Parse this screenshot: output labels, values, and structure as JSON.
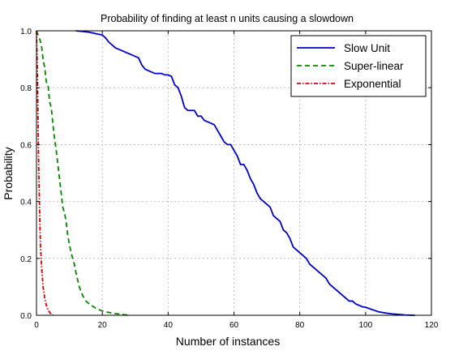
{
  "chart_data": {
    "type": "line",
    "title": "Probability of finding at least n units causing a slowdown",
    "xlabel": "Number of instances",
    "ylabel": "Probability",
    "xlim": [
      0,
      120
    ],
    "ylim": [
      0,
      1.0
    ],
    "xticks": [
      0,
      20,
      40,
      60,
      80,
      100,
      120
    ],
    "yticks": [
      0,
      0.2,
      0.4,
      0.6,
      0.8,
      1.0
    ],
    "xtick_labels": [
      "0",
      "20",
      "40",
      "60",
      "80",
      "100",
      "120"
    ],
    "ytick_labels": [
      "0.0",
      "0.2",
      "0.4",
      "0.6",
      "0.8",
      "1.0"
    ],
    "grid": true,
    "legend_position": "top-right",
    "series": [
      {
        "name": "Slow Unit",
        "color": "#0000cc",
        "line_style": "solid",
        "x": [
          12,
          16,
          20,
          21,
          22,
          23,
          24,
          25,
          26,
          27,
          28,
          29,
          30,
          31,
          32,
          33,
          34,
          35,
          36,
          37,
          38,
          39,
          40,
          41,
          42,
          43,
          44,
          45,
          46,
          47,
          48,
          49,
          50,
          51,
          52,
          53,
          54,
          55,
          56,
          57,
          58,
          59,
          60,
          61,
          62,
          63,
          64,
          65,
          66,
          67,
          68,
          69,
          70,
          71,
          72,
          73,
          74,
          75,
          76,
          77,
          78,
          79,
          80,
          81,
          82,
          83,
          84,
          85,
          86,
          87,
          88,
          89,
          90,
          91,
          92,
          93,
          94,
          95,
          96,
          97,
          98,
          99,
          100,
          102,
          104,
          106,
          108,
          110,
          112,
          115
        ],
        "y": [
          1.0,
          0.995,
          0.985,
          0.975,
          0.96,
          0.95,
          0.94,
          0.935,
          0.93,
          0.925,
          0.92,
          0.915,
          0.91,
          0.905,
          0.88,
          0.865,
          0.86,
          0.855,
          0.85,
          0.85,
          0.85,
          0.845,
          0.845,
          0.84,
          0.81,
          0.8,
          0.77,
          0.73,
          0.72,
          0.72,
          0.72,
          0.7,
          0.7,
          0.685,
          0.68,
          0.675,
          0.67,
          0.65,
          0.63,
          0.61,
          0.6,
          0.6,
          0.58,
          0.56,
          0.53,
          0.53,
          0.51,
          0.48,
          0.46,
          0.43,
          0.41,
          0.4,
          0.39,
          0.38,
          0.35,
          0.34,
          0.33,
          0.3,
          0.29,
          0.27,
          0.24,
          0.23,
          0.22,
          0.21,
          0.2,
          0.18,
          0.17,
          0.16,
          0.15,
          0.14,
          0.13,
          0.11,
          0.1,
          0.09,
          0.08,
          0.07,
          0.06,
          0.05,
          0.05,
          0.04,
          0.035,
          0.03,
          0.028,
          0.02,
          0.012,
          0.008,
          0.005,
          0.003,
          0.001,
          0.0
        ]
      },
      {
        "name": "Super-linear",
        "color": "#008800",
        "line_style": "dashed",
        "x": [
          0,
          1,
          1.5,
          2,
          2.5,
          3,
          3.5,
          4,
          4.5,
          5,
          5.5,
          6,
          6.5,
          7,
          7.5,
          8,
          8.5,
          9,
          9.5,
          10,
          10.5,
          11,
          11.5,
          12,
          13,
          14,
          15,
          16,
          18,
          20,
          22,
          24,
          26,
          28
        ],
        "y": [
          1.0,
          0.97,
          0.95,
          0.9,
          0.87,
          0.82,
          0.81,
          0.75,
          0.73,
          0.67,
          0.62,
          0.58,
          0.53,
          0.48,
          0.43,
          0.38,
          0.36,
          0.33,
          0.28,
          0.25,
          0.22,
          0.2,
          0.18,
          0.15,
          0.1,
          0.07,
          0.05,
          0.04,
          0.025,
          0.015,
          0.01,
          0.006,
          0.003,
          0.0
        ]
      },
      {
        "name": "Exponential",
        "color": "#dd0000",
        "line_style": "dashdot",
        "x": [
          0,
          0.2,
          0.4,
          0.6,
          0.8,
          1,
          1.2,
          1.5,
          2,
          2.5,
          3,
          3.5,
          4,
          4.5,
          5
        ],
        "y": [
          1.0,
          0.9,
          0.75,
          0.58,
          0.45,
          0.34,
          0.25,
          0.18,
          0.1,
          0.06,
          0.035,
          0.02,
          0.01,
          0.004,
          0.0
        ]
      }
    ]
  }
}
